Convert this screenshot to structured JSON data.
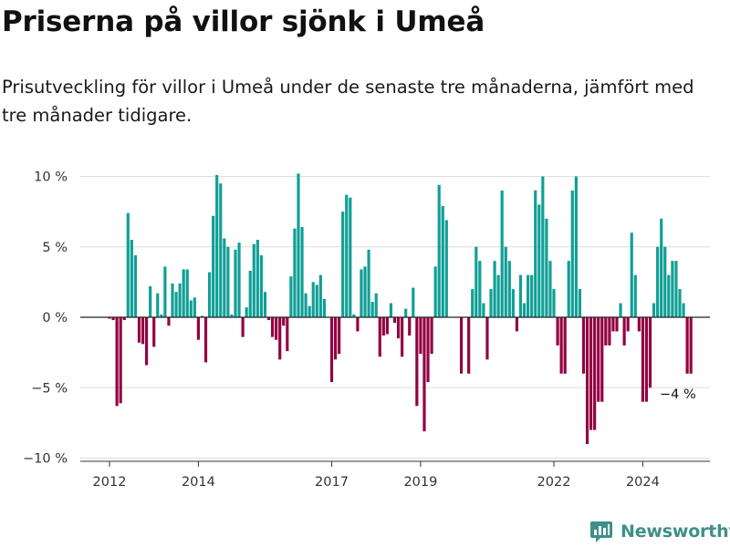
{
  "header": {
    "title": "Priserna på villor sjönk i Umeå",
    "subtitle": "Prisutveckling för villor i Umeå under de senaste tre månaderna, jämfört med tre månader tidigare."
  },
  "brand": {
    "name": "Newsworthy",
    "icon": "newsworthy-logo-icon",
    "color": "#3f8f8b"
  },
  "chart_data": {
    "type": "bar",
    "title": "Priserna på villor sjönk i Umeå",
    "subtitle": "Prisutveckling för villor i Umeå under de senaste tre månaderna, jämfört med tre månader tidigare.",
    "xlabel": "",
    "ylabel": "",
    "x_start": {
      "year": 2012,
      "month": 1
    },
    "x_end": {
      "year": 2024,
      "month": 11
    },
    "x_ticks": [
      {
        "year": 2012,
        "label": "2012"
      },
      {
        "year": 2014,
        "label": "2014"
      },
      {
        "year": 2017,
        "label": "2017"
      },
      {
        "year": 2019,
        "label": "2019"
      },
      {
        "year": 2022,
        "label": "2022"
      },
      {
        "year": 2024,
        "label": "2024"
      }
    ],
    "y_ticks": [
      {
        "value": 10,
        "label": "10 %"
      },
      {
        "value": 5,
        "label": "5 %"
      },
      {
        "value": 0,
        "label": "0 %"
      },
      {
        "value": -5,
        "label": "−5 %"
      },
      {
        "value": -10,
        "label": "−10 %"
      }
    ],
    "ylim": [
      -10.5,
      10.5
    ],
    "grid": true,
    "colors": {
      "positive": "#0f9f96",
      "negative": "#930042",
      "grid": "#dddddd",
      "zero_line": "#222222"
    },
    "annotation": {
      "text": "−4 %",
      "value": -4
    },
    "values": [
      -0.1,
      -0.2,
      -6.3,
      -6.1,
      -0.2,
      7.4,
      5.5,
      4.4,
      -1.8,
      -1.9,
      -3.4,
      2.2,
      -2.1,
      1.7,
      0.2,
      3.6,
      -0.6,
      2.4,
      1.8,
      2.4,
      3.4,
      3.4,
      1.2,
      1.4,
      -1.6,
      0.1,
      -3.2,
      3.2,
      7.2,
      10.1,
      9.5,
      5.6,
      5.0,
      0.2,
      4.8,
      5.3,
      -1.4,
      0.7,
      3.3,
      5.2,
      5.5,
      4.4,
      1.8,
      -0.2,
      -1.4,
      -1.6,
      -3.0,
      -0.6,
      -2.4,
      2.9,
      6.3,
      10.2,
      6.4,
      1.7,
      0.8,
      2.5,
      2.3,
      3.0,
      1.3,
      0.0,
      -4.6,
      -3.0,
      -2.6,
      7.5,
      8.7,
      8.5,
      0.2,
      -1.0,
      3.4,
      3.6,
      4.8,
      1.1,
      1.7,
      -2.8,
      -1.3,
      -1.2,
      1.0,
      -0.4,
      -1.5,
      -2.8,
      0.6,
      -1.3,
      2.1,
      -6.3,
      -2.6,
      -8.1,
      -4.6,
      -2.6,
      3.6,
      9.4,
      7.9,
      6.9,
      0.0,
      0.0,
      0.0,
      -4.0,
      0.0,
      -4.0,
      2.0,
      5.0,
      4.0,
      1.0,
      -3.0,
      2.0,
      4.0,
      3.0,
      9.0,
      5.0,
      4.0,
      2.0,
      -1.0,
      3.0,
      1.0,
      3.0,
      3.0,
      9.0,
      8.0,
      10.0,
      7.0,
      4.0,
      2.0,
      -2.0,
      -4.0,
      -4.0,
      4.0,
      9.0,
      10.0,
      2.0,
      -4.0,
      -9.0,
      -8.0,
      -8.0,
      -6.0,
      -6.0,
      -2.0,
      -2.0,
      -1.0,
      -1.0,
      1.0,
      -2.0,
      -1.0,
      6.0,
      3.0,
      -1.0,
      -6.0,
      -6.0,
      -5.0,
      1.0,
      5.0,
      7.0,
      5.0,
      3.0,
      4.0,
      4.0,
      2.0,
      1.0,
      -4.0,
      -4.0
    ]
  }
}
